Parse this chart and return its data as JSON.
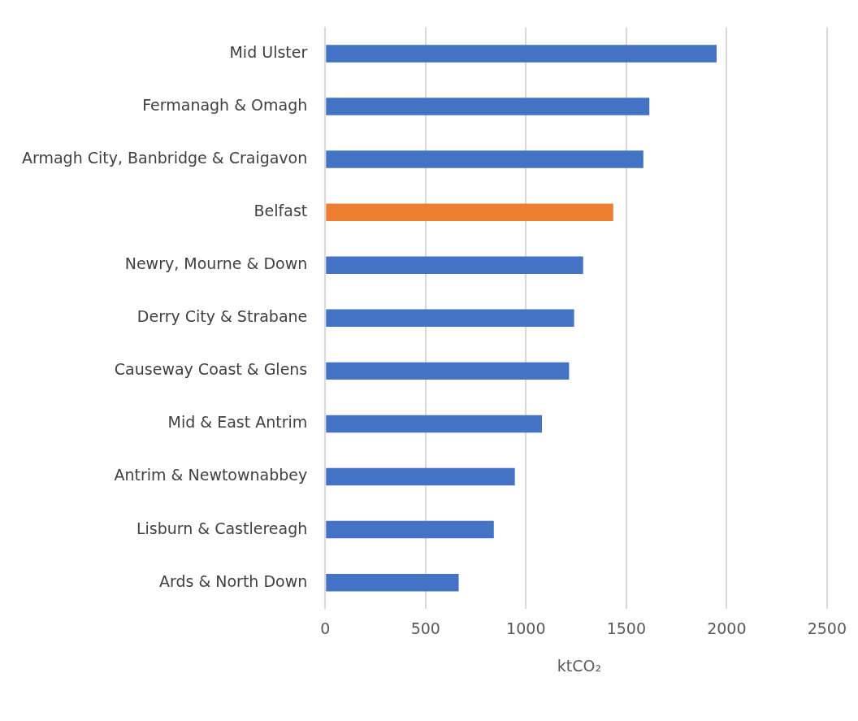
{
  "chart_data": {
    "type": "bar",
    "orientation": "horizontal",
    "categories": [
      "Mid Ulster",
      "Fermanagh & Omagh",
      "Armagh City, Banbridge & Craigavon",
      "Belfast",
      "Newry, Mourne & Down",
      "Derry City & Strabane",
      "Causeway Coast & Glens",
      "Mid & East Antrim",
      "Antrim & Newtownabbey",
      "Lisburn & Castlereagh",
      "Ards & North Down"
    ],
    "values": [
      1950,
      1615,
      1585,
      1435,
      1285,
      1240,
      1215,
      1080,
      945,
      840,
      665
    ],
    "colors": [
      "#4472c4",
      "#4472c4",
      "#4472c4",
      "#ed7d31",
      "#4472c4",
      "#4472c4",
      "#4472c4",
      "#4472c4",
      "#4472c4",
      "#4472c4",
      "#4472c4"
    ],
    "xlabel": "ktCO₂",
    "xlim": [
      0,
      2500
    ],
    "xticks": [
      0,
      500,
      1000,
      1500,
      2000,
      2500
    ],
    "grid": "x"
  }
}
